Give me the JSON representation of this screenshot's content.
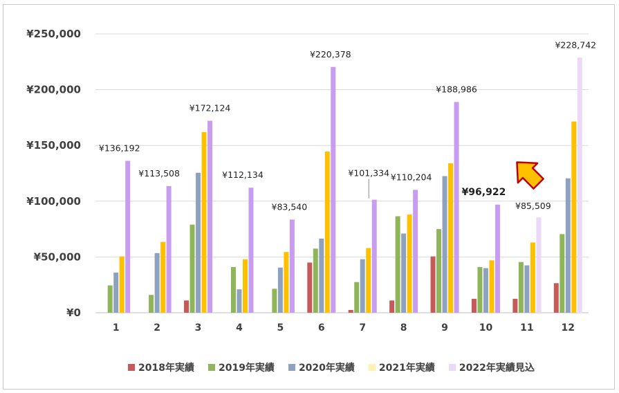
{
  "chart_data": {
    "type": "bar",
    "categories": [
      "1",
      "2",
      "3",
      "4",
      "5",
      "6",
      "7",
      "8",
      "9",
      "10",
      "11",
      "12"
    ],
    "ylim": [
      0,
      250000
    ],
    "yticks": [
      "¥0",
      "¥50,000",
      "¥100,000",
      "¥150,000",
      "¥200,000",
      "¥250,000"
    ],
    "ytick_values": [
      0,
      50000,
      100000,
      150000,
      200000,
      250000
    ],
    "grid": true,
    "legend_position": "bottom",
    "series": [
      {
        "name": "2018年実績",
        "color": "#c55a5a",
        "values": [
          0,
          0,
          11000,
          0,
          0,
          45000,
          2500,
          11000,
          50500,
          12500,
          12500,
          26500
        ]
      },
      {
        "name": "2019年実績",
        "color": "#8fb55a",
        "values": [
          24500,
          16000,
          79000,
          41000,
          21500,
          57500,
          27500,
          86500,
          75000,
          41000,
          45500,
          70500
        ]
      },
      {
        "name": "2020年実績",
        "color": "#8ea2c0",
        "values": [
          36000,
          53500,
          125500,
          21000,
          40500,
          66500,
          48000,
          71000,
          122500,
          40000,
          42500,
          120500
        ]
      },
      {
        "name": "2021年実績",
        "color": "#ffc000",
        "values": [
          50500,
          63500,
          162000,
          48000,
          54500,
          144500,
          58000,
          88000,
          134000,
          47000,
          63000,
          171500
        ]
      },
      {
        "name": "2022年実績見込",
        "color": "#c89cf0",
        "values": [
          136192,
          113508,
          172124,
          112134,
          83540,
          220378,
          101334,
          110204,
          188986,
          96922,
          85509,
          228742
        ]
      }
    ],
    "estimate_from_index": 10,
    "estimate_color": "#ead9f8",
    "data_labels": [
      "¥136,192",
      "¥113,508",
      "¥172,124",
      "¥112,134",
      "¥83,540",
      "¥220,378",
      "¥101,334",
      "¥110,204",
      "¥188,986",
      "¥96,922",
      "¥85,509",
      "¥228,742"
    ],
    "highlight_index": 9,
    "annotation": {
      "type": "arrow",
      "icon": "arrow-down-left-icon",
      "color": "#ffc000",
      "outline": "#c00000"
    }
  }
}
